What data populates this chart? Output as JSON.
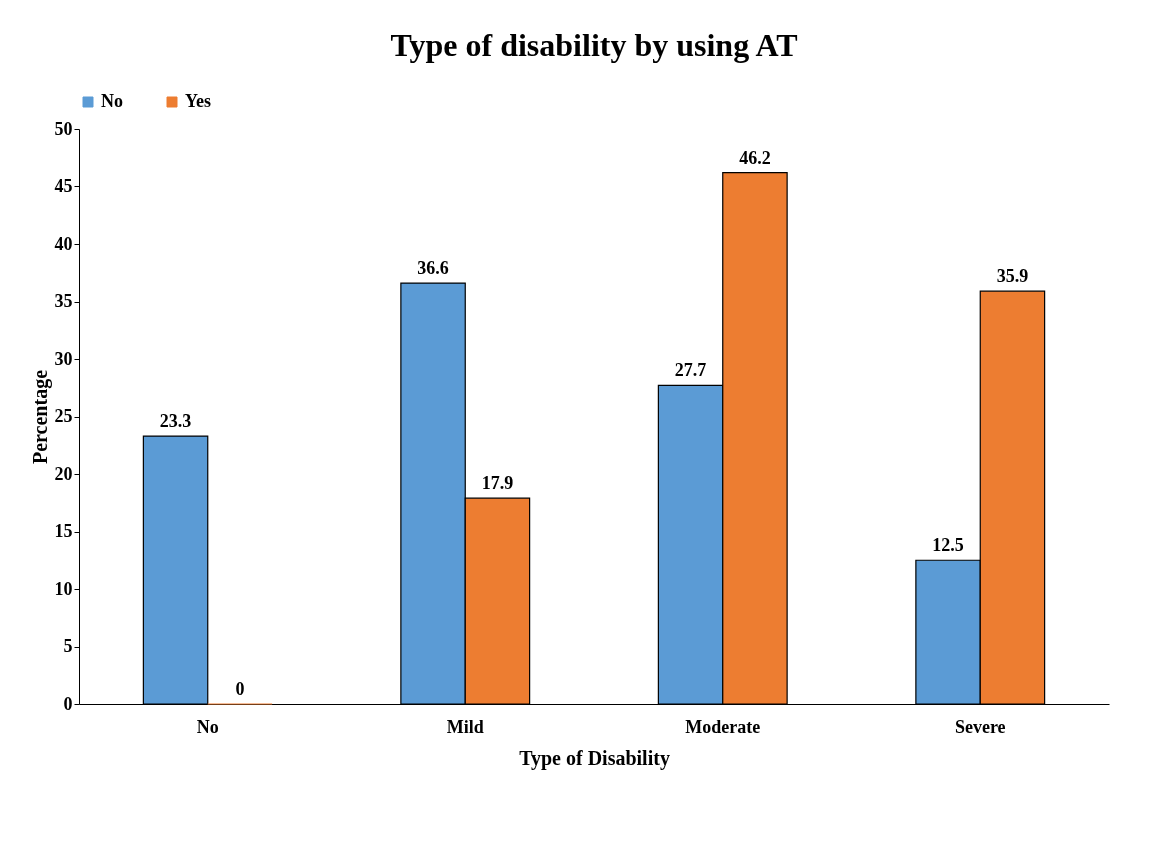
{
  "chart_data": {
    "type": "bar",
    "title": "Type of disability by using AT",
    "xlabel": "Type of Disability",
    "ylabel": "Percentage",
    "categories": [
      "No",
      "Mild",
      "Moderate",
      "Severe"
    ],
    "series": [
      {
        "name": "No",
        "color": "#5b9bd5",
        "values": [
          23.3,
          36.6,
          27.7,
          12.5
        ]
      },
      {
        "name": "Yes",
        "color": "#ed7d31",
        "values": [
          0,
          17.9,
          46.2,
          35.9
        ]
      }
    ],
    "ylim": [
      0,
      50
    ],
    "yticks": [
      0,
      5,
      10,
      15,
      20,
      25,
      30,
      35,
      40,
      45,
      50
    ],
    "data_labels": true,
    "legend": "top",
    "grid": false
  }
}
